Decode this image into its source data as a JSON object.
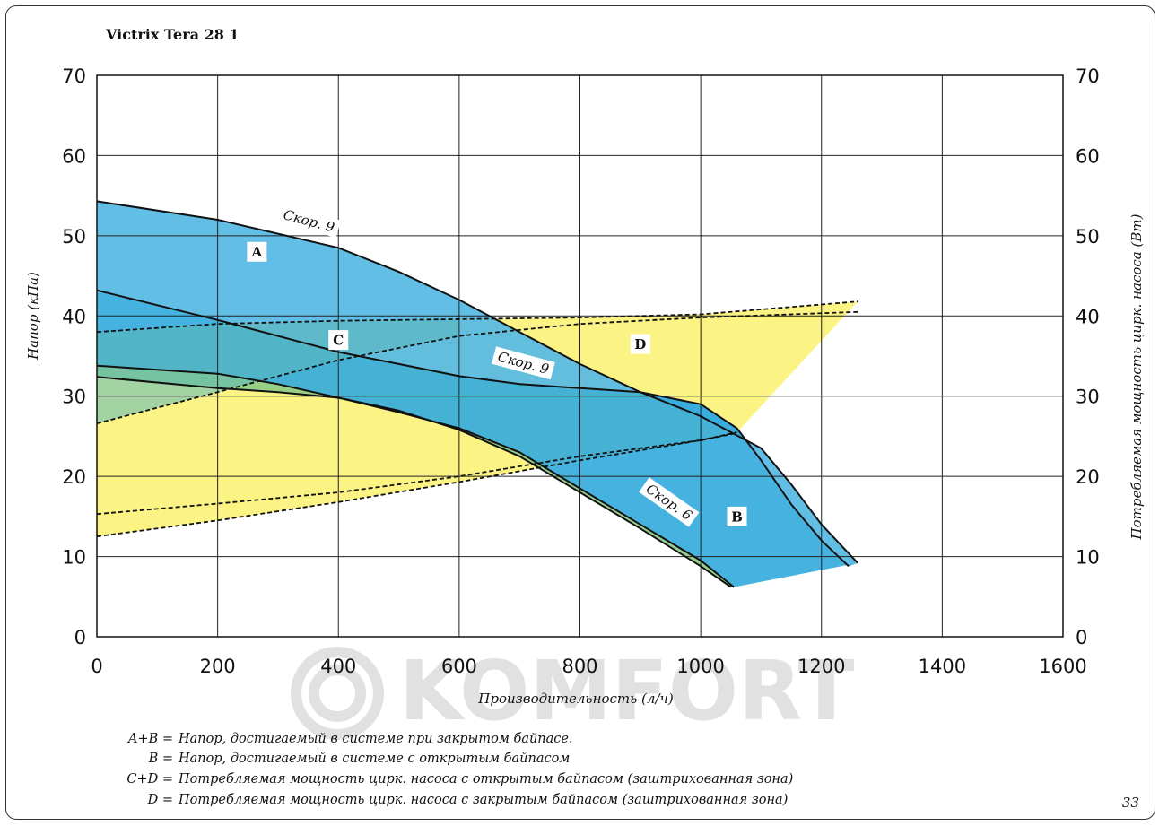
{
  "page": {
    "number": "33",
    "watermark": "KOMFORT"
  },
  "chart_data": {
    "type": "area",
    "title": "Victrix Tera 28 1",
    "xlabel": "Производительность (л/ч)",
    "ylabel": "Напор (кПа)",
    "y2label": "Потребляемая мощность цирк. насоса (Вт)",
    "xlim": [
      0,
      1600
    ],
    "ylim": [
      0,
      70
    ],
    "y2lim": [
      0,
      70
    ],
    "x_ticks": [
      0,
      200,
      400,
      600,
      800,
      1000,
      1200,
      1400,
      1600
    ],
    "y_ticks": [
      0,
      10,
      20,
      30,
      40,
      50,
      60,
      70
    ],
    "grid": true,
    "colors": {
      "zone_A": "#56b9e4",
      "zone_B": "#35abdc",
      "zone_D": "#fbf384",
      "zone_C": "#5bb8bc",
      "zone_CD_green": "#8ccc84",
      "line": "#111111"
    },
    "series": [
      {
        "role": "head-closed-bypass-speed9",
        "points": [
          [
            0,
            54.3
          ],
          [
            200,
            52
          ],
          [
            400,
            48.5
          ],
          [
            500,
            45.5
          ],
          [
            600,
            42
          ],
          [
            700,
            38
          ],
          [
            800,
            34
          ],
          [
            900,
            30.5
          ],
          [
            1000,
            27.5
          ],
          [
            1100,
            23.5
          ],
          [
            1150,
            19
          ],
          [
            1200,
            14
          ],
          [
            1260,
            9.2
          ]
        ]
      },
      {
        "role": "head-open-bypass-speed9",
        "points": [
          [
            0,
            43.2
          ],
          [
            200,
            39.5
          ],
          [
            400,
            35.5
          ],
          [
            500,
            34
          ],
          [
            600,
            32.5
          ],
          [
            700,
            31.5
          ],
          [
            800,
            31
          ],
          [
            900,
            30.5
          ],
          [
            1000,
            29
          ],
          [
            1060,
            26
          ],
          [
            1100,
            22
          ],
          [
            1150,
            16.5
          ],
          [
            1200,
            12
          ],
          [
            1245,
            8.8
          ]
        ]
      },
      {
        "role": "head-speed6-upper",
        "points": [
          [
            0,
            33.8
          ],
          [
            200,
            32.8
          ],
          [
            300,
            31.5
          ],
          [
            400,
            29.8
          ],
          [
            500,
            28
          ],
          [
            600,
            26
          ],
          [
            700,
            23
          ],
          [
            800,
            18.5
          ],
          [
            900,
            14
          ],
          [
            1000,
            9.5
          ],
          [
            1055,
            6.2
          ]
        ]
      },
      {
        "role": "head-speed6-lower",
        "points": [
          [
            0,
            32.4
          ],
          [
            200,
            31
          ],
          [
            300,
            30.5
          ],
          [
            400,
            29.8
          ],
          [
            500,
            28.2
          ],
          [
            600,
            25.8
          ],
          [
            700,
            22.5
          ],
          [
            800,
            18
          ],
          [
            900,
            13.5
          ],
          [
            1000,
            8.8
          ],
          [
            1050,
            6.2
          ]
        ]
      },
      {
        "role": "power-closed-bypass-upper",
        "points": [
          [
            0,
            38
          ],
          [
            200,
            39
          ],
          [
            400,
            39.4
          ],
          [
            600,
            39.6
          ],
          [
            800,
            39.8
          ],
          [
            1000,
            40.2
          ],
          [
            1260,
            41.8
          ]
        ]
      },
      {
        "role": "power-closed-bypass-lower",
        "points": [
          [
            0,
            26.6
          ],
          [
            200,
            30.5
          ],
          [
            400,
            34.5
          ],
          [
            600,
            37.5
          ],
          [
            800,
            39
          ],
          [
            1000,
            39.8
          ],
          [
            1260,
            40.5
          ]
        ]
      },
      {
        "role": "power-open-bypass-upper",
        "points": [
          [
            0,
            15.3
          ],
          [
            200,
            16.6
          ],
          [
            400,
            18
          ],
          [
            600,
            20
          ],
          [
            800,
            22.5
          ],
          [
            1000,
            24.5
          ],
          [
            1060,
            25.4
          ]
        ]
      },
      {
        "role": "power-open-bypass-lower",
        "points": [
          [
            0,
            12.5
          ],
          [
            200,
            14.5
          ],
          [
            400,
            16.8
          ],
          [
            600,
            19.3
          ],
          [
            800,
            22
          ],
          [
            1000,
            24.5
          ],
          [
            1060,
            25.5
          ]
        ]
      }
    ],
    "zones": [
      {
        "label": "A",
        "x": 265,
        "y": 48
      },
      {
        "label": "B",
        "x": 1060,
        "y": 15
      },
      {
        "label": "C",
        "x": 400,
        "y": 37
      },
      {
        "label": "D",
        "x": 900,
        "y": 36.5
      }
    ],
    "annotations": [
      {
        "text": "Скор. 9",
        "x": 350,
        "y": 51.5,
        "rotate": 15
      },
      {
        "text": "Скор. 9",
        "x": 705,
        "y": 33.8,
        "rotate": 15
      },
      {
        "text": "Скор. 6",
        "x": 945,
        "y": 16.5,
        "rotate": 35
      }
    ],
    "legend": [
      {
        "key": "A+B =",
        "text": "Напор, достигаемый в системе при закрытом байпасе."
      },
      {
        "key": "B =",
        "text": "Напор, достигаемый в системе с открытым байпасом"
      },
      {
        "key": "C+D =",
        "text": "Потребляемая мощность цирк. насоса с открытым байпасом (заштрихованная зона)"
      },
      {
        "key": "D =",
        "text": "Потребляемая мощность цирк. насоса с закрытым байпасом (заштрихованная зона)"
      }
    ]
  }
}
